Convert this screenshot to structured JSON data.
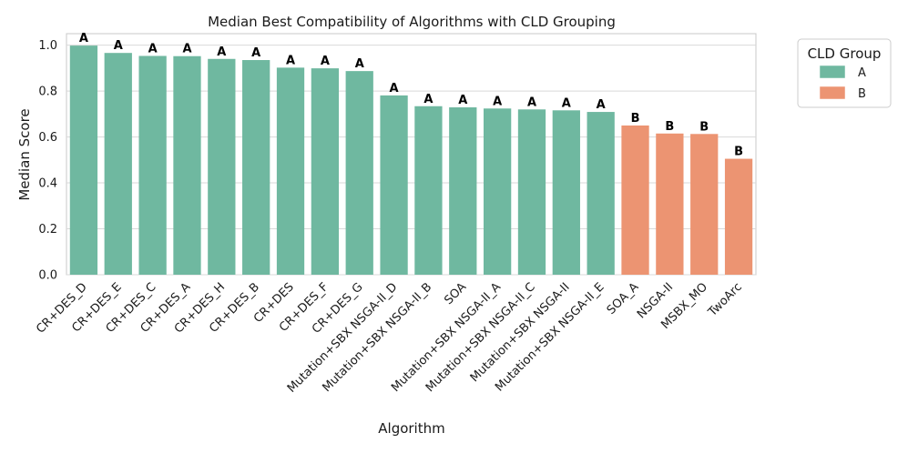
{
  "chart_data": {
    "type": "bar",
    "title": "Median Best Compatibility of Algorithms with CLD Grouping",
    "xlabel": "Algorithm",
    "ylabel": "Median Score",
    "ylim": [
      0,
      1.05
    ],
    "yticks": [
      0.0,
      0.2,
      0.4,
      0.6,
      0.8,
      1.0
    ],
    "ytick_labels": [
      "0.0",
      "0.2",
      "0.4",
      "0.6",
      "0.8",
      "1.0"
    ],
    "grid": true,
    "categories": [
      "CR+DES_D",
      "CR+DES_E",
      "CR+DES_C",
      "CR+DES_A",
      "CR+DES_H",
      "CR+DES_B",
      "CR+DES",
      "CR+DES_F",
      "CR+DES_G",
      "Mutation+SBX NSGA-II_D",
      "Mutation+SBX NSGA-II_B",
      "SOA",
      "Mutation+SBX NSGA-II_A",
      "Mutation+SBX NSGA-II_C",
      "Mutation+SBX NSGA-II",
      "Mutation+SBX NSGA-II_E",
      "SOA_A",
      "NSGA-II",
      "MSBX_MO",
      "TwoArc"
    ],
    "values": [
      0.998,
      0.966,
      0.953,
      0.952,
      0.94,
      0.935,
      0.902,
      0.899,
      0.887,
      0.781,
      0.734,
      0.729,
      0.724,
      0.72,
      0.716,
      0.709,
      0.65,
      0.615,
      0.613,
      0.505
    ],
    "groups": [
      "A",
      "A",
      "A",
      "A",
      "A",
      "A",
      "A",
      "A",
      "A",
      "A",
      "A",
      "A",
      "A",
      "A",
      "A",
      "A",
      "B",
      "B",
      "B",
      "B"
    ],
    "legend": {
      "title": "CLD Group",
      "placement": "outside-top-right",
      "entries": [
        {
          "label": "A",
          "color": "#6fb8a0"
        },
        {
          "label": "B",
          "color": "#ec9472"
        }
      ]
    }
  }
}
